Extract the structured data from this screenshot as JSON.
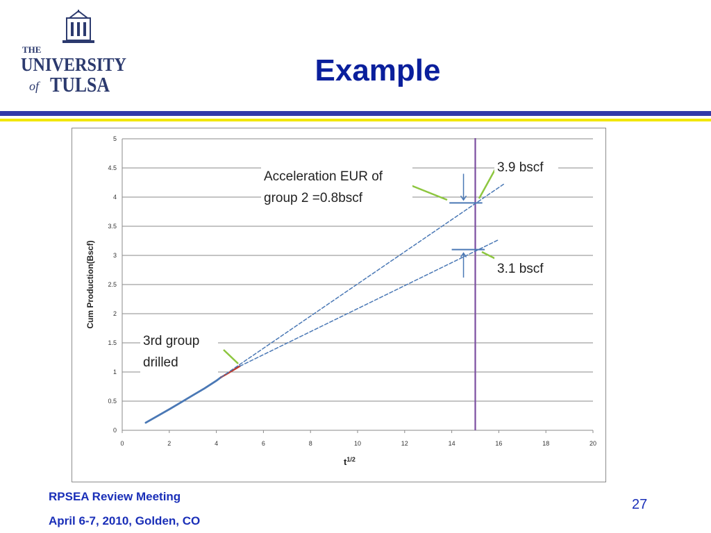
{
  "header": {
    "logo_the": "THE",
    "logo_university": "UNIVERSITY",
    "logo_of": "of",
    "logo_tulsa": "TULSA",
    "title": "Example"
  },
  "colors": {
    "title": "#0a1f9c",
    "rule_blue": "#3238a8",
    "rule_yellow": "#f2e600",
    "footer": "#1a2fb8",
    "logo": "#2c3a6e",
    "series_line": "#4a78b5",
    "drilled_segment": "#c0392b",
    "vertical_marker": "#7b4ea0",
    "callout_line": "#8dc63f",
    "bracket": "#4a78b5"
  },
  "chart_data": {
    "type": "line",
    "xlabel": "t",
    "xlabel_sup": "1/2",
    "ylabel": "Cum Production(Bscf)",
    "xlim": [
      0,
      20
    ],
    "ylim": [
      0,
      5
    ],
    "x_ticks": [
      "0",
      "2",
      "4",
      "6",
      "8",
      "10",
      "12",
      "14",
      "16",
      "18",
      "20"
    ],
    "y_ticks": [
      "0",
      "0.5",
      "1",
      "1.5",
      "2",
      "2.5",
      "3",
      "3.5",
      "4",
      "4.5",
      "5"
    ],
    "grid": "horizontal",
    "series": [
      {
        "style": "solid",
        "points": [
          [
            1,
            0.13
          ],
          [
            2,
            0.36
          ],
          [
            3,
            0.6
          ],
          [
            3.5,
            0.72
          ],
          [
            4,
            0.85
          ],
          [
            4.2,
            0.91
          ]
        ]
      },
      {
        "style": "solid-red",
        "points": [
          [
            4.2,
            0.91
          ],
          [
            4.5,
            0.98
          ],
          [
            5,
            1.1
          ]
        ]
      },
      {
        "style": "dashed",
        "points": [
          [
            4.2,
            0.91
          ],
          [
            16.2,
            4.22
          ]
        ]
      },
      {
        "style": "dashed",
        "points": [
          [
            5,
            1.1
          ],
          [
            16,
            3.27
          ]
        ]
      }
    ],
    "vertical_line_x": 15,
    "brackets": [
      {
        "y": 3.9,
        "x_from": 13.9,
        "x_to": 15.3
      },
      {
        "y": 3.1,
        "x_from": 14,
        "x_to": 15.4
      }
    ],
    "annotations": [
      {
        "lines": [
          "Acceleration EUR of",
          "group 2 =0.8bscf"
        ]
      },
      {
        "lines": [
          "3.9 bscf"
        ]
      },
      {
        "lines": [
          "3.1 bscf"
        ]
      },
      {
        "lines": [
          "3rd group",
          "drilled"
        ]
      }
    ]
  },
  "footer": {
    "meeting": "RPSEA Review Meeting",
    "date_place": "April 6-7, 2010, Golden, CO",
    "page_number": "27"
  }
}
